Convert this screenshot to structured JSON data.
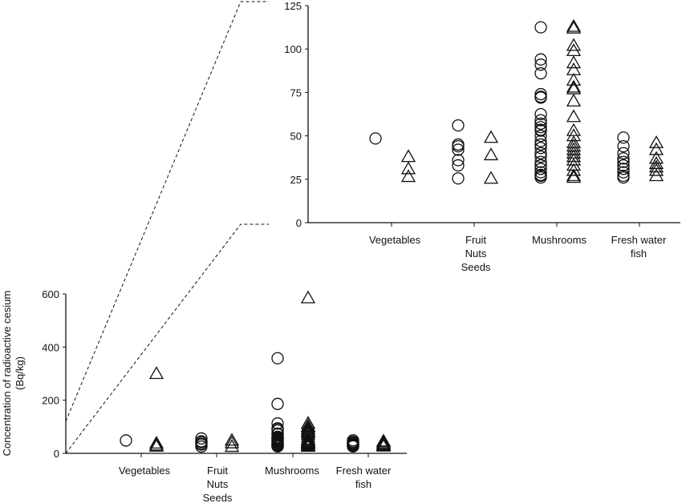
{
  "chart_data": [
    {
      "type": "scatter",
      "panel": "main",
      "ylabel": [
        "Concentration of radioactive cesium",
        "(Bq/kg)"
      ],
      "ylim": [
        0,
        600
      ],
      "yticks": [
        "0",
        "200",
        "400",
        "600"
      ],
      "categories": [
        [
          "Vegetables"
        ],
        [
          "Fruit",
          "Nuts",
          "Seeds"
        ],
        [
          "Mushrooms"
        ],
        [
          "Fresh water",
          "fish"
        ]
      ],
      "grid": false,
      "series": [
        {
          "marker": "circle",
          "values": [
            [
              48.5
            ],
            [
              56,
              45,
              44,
              42,
              36,
              33,
              25.5
            ],
            [
              358,
              186,
              112.5,
              94,
              91,
              86,
              74,
              72.5,
              72,
              62.5,
              59,
              57,
              55,
              53.5,
              53,
              50,
              47,
              45,
              43,
              40,
              38,
              35,
              33,
              31,
              29,
              27.5,
              27,
              26
            ],
            [
              49,
              44,
              40,
              37,
              35,
              33,
              31,
              29,
              27,
              26
            ]
          ]
        },
        {
          "marker": "triangle",
          "values": [
            [
              300,
              38,
              31,
              26.5
            ],
            [
              49,
              39,
              25.5
            ],
            [
              585,
              113,
              112,
              102,
              99,
              92,
              88,
              82,
              78,
              77,
              70,
              61,
              53,
              50,
              46,
              44,
              42,
              40,
              38,
              36,
              33,
              30,
              27,
              26
            ],
            [
              46,
              42,
              37,
              34,
              32,
              30,
              27
            ]
          ]
        }
      ]
    },
    {
      "type": "scatter",
      "panel": "inset (zoom of 0-125)",
      "ylim": [
        0,
        125
      ],
      "yticks": [
        "0",
        "25",
        "50",
        "75",
        "100",
        "125"
      ],
      "categories": [
        [
          "Vegetables"
        ],
        [
          "Fruit",
          "Nuts",
          "Seeds"
        ],
        [
          "Mushrooms"
        ],
        [
          "Fresh water",
          "fish"
        ]
      ],
      "grid": false
    }
  ]
}
